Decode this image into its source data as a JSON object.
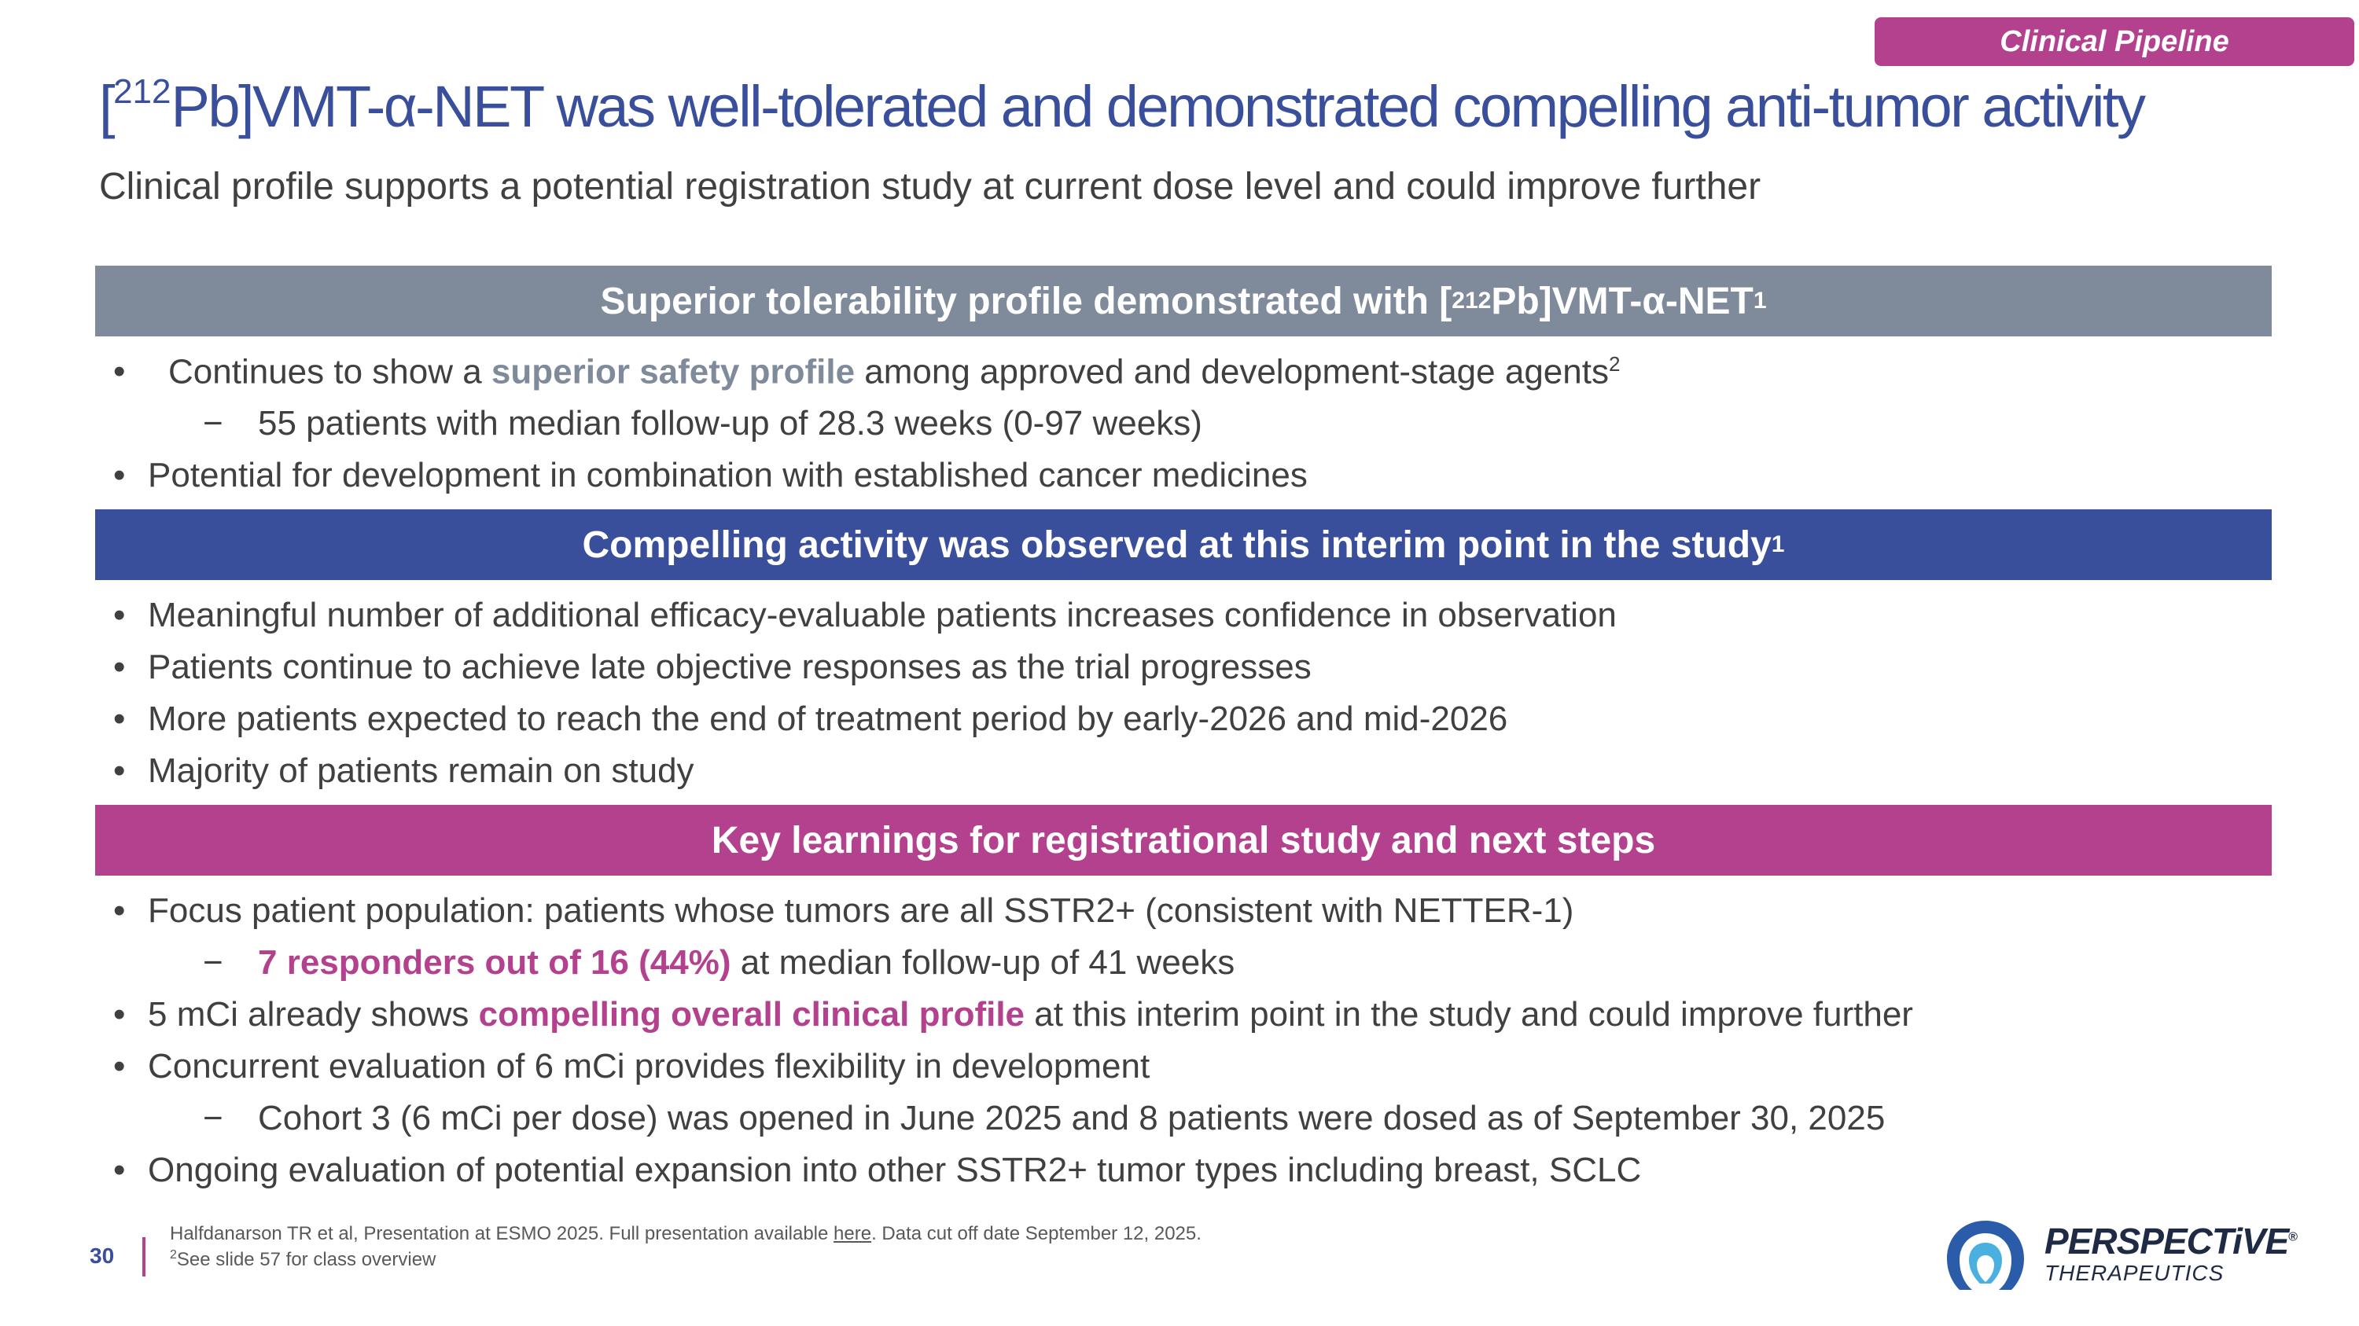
{
  "section_tag": "Clinical Pipeline",
  "title": {
    "sup": "212",
    "rest": "Pb]VMT-α-NET was well-tolerated and demonstrated compelling anti-tumor activity"
  },
  "subtitle": "Clinical profile supports a potential registration study at current dose level and could improve further",
  "sections": [
    {
      "header": "Superior tolerability profile demonstrated with [",
      "header_sup": "212",
      "header_rest": "Pb]VMT-α-NET",
      "header_ref": "1",
      "bullets": [
        {
          "pre": "Continues to show a ",
          "hl": "superior safety profile",
          "post": " among approved and development-stage agents",
          "ref": "2"
        },
        {
          "text": "55 patients with median follow-up of 28.3 weeks (0-97 weeks)"
        },
        {
          "text": "Potential for development in combination with established cancer medicines"
        }
      ]
    },
    {
      "header": "Compelling activity was observed at this interim point in the study",
      "header_ref": "1",
      "bullets": [
        {
          "text": "Meaningful  number of additional efficacy-evaluable patients increases confidence in observation"
        },
        {
          "text": "Patients continue to achieve late objective responses as the trial progresses"
        },
        {
          "text": "More patients expected to reach the end of treatment period by early-2026 and mid-2026"
        },
        {
          "text": "Majority of patients remain on study"
        }
      ]
    },
    {
      "header": "Key learnings for registrational study and next steps",
      "bullets": [
        {
          "text": "Focus patient population: patients whose tumors are all SSTR2+ (consistent with NETTER-1)"
        },
        {
          "hl": "7 responders out of 16 (44%)",
          "post": " at median follow-up of 41 weeks"
        },
        {
          "pre": "5 mCi already shows ",
          "hl": "compelling overall clinical profile",
          "post": " at this interim point in the study and could improve further"
        },
        {
          "text": "Concurrent evaluation of 6 mCi provides flexibility in development"
        },
        {
          "text": "Cohort 3 (6 mCi per dose) was opened in June 2025 and 8 patients were dosed as of September 30, 2025"
        },
        {
          "text": "Ongoing evaluation of potential expansion into other SSTR2+ tumor types including breast, SCLC"
        }
      ]
    }
  ],
  "bullet_char": "•",
  "dash_char": "−",
  "footer": {
    "page_number": "30",
    "footnote1_pre": "Halfdanarson TR et al, Presentation at ESMO 2025. Full presentation available ",
    "footnote1_link": "here",
    "footnote1_post": ". Data cut off date September 12, 2025.",
    "footnote2_sup": "2",
    "footnote2": "See slide 57 for class overview"
  },
  "logo": {
    "name": "PERSPECTiVE",
    "reg": "®",
    "tagline": "THERAPEUTICS",
    "icon": "perspective-logo-icon"
  }
}
